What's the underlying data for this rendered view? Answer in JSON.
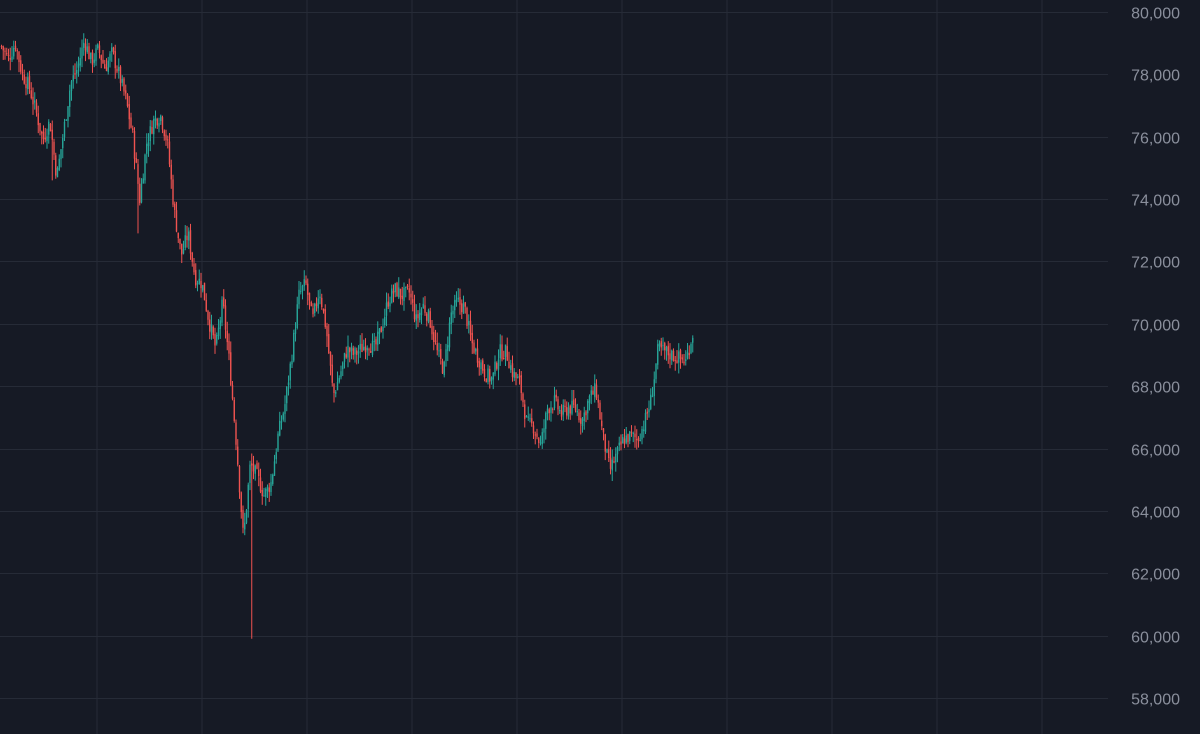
{
  "chart_data": {
    "type": "candlestick",
    "title": "",
    "xlabel": "",
    "ylabel": "",
    "ylim": [
      57000,
      80300
    ],
    "y_ticks": [
      {
        "value": 80000,
        "label": "80,000"
      },
      {
        "value": 78000,
        "label": "78,000"
      },
      {
        "value": 76000,
        "label": "76,000"
      },
      {
        "value": 74000,
        "label": "74,000"
      },
      {
        "value": 72000,
        "label": "72,000"
      },
      {
        "value": 70000,
        "label": "70,000"
      },
      {
        "value": 68000,
        "label": "68,000"
      },
      {
        "value": 66000,
        "label": "66,000"
      },
      {
        "value": 64000,
        "label": "64,000"
      },
      {
        "value": 62000,
        "label": "62,000"
      },
      {
        "value": 60000,
        "label": "60,000"
      },
      {
        "value": 58000,
        "label": "58,000"
      }
    ],
    "y_axis_position": "right",
    "grid": true,
    "total_slots": 396,
    "colors": {
      "background": "#161a25",
      "grid": "#262b37",
      "axis_text": "#8a8f9c",
      "up": "#26a69a",
      "down": "#ef5350"
    },
    "price_path": [
      78900,
      78500,
      79000,
      78000,
      77600,
      76800,
      75900,
      76500,
      74700,
      76200,
      77700,
      78200,
      79100,
      78400,
      78800,
      78200,
      78700,
      78000,
      77200,
      76000,
      74000,
      75800,
      76500,
      76700,
      75800,
      73600,
      72200,
      72900,
      71500,
      71300,
      70100,
      69200,
      70700,
      68700,
      66100,
      63100,
      65500,
      65100,
      64500,
      64900,
      66400,
      67400,
      69000,
      70900,
      71300,
      70100,
      71100,
      69800,
      67700,
      68400,
      69200,
      69000,
      69200,
      69400,
      69200,
      69900,
      70800,
      71100,
      70900,
      71000,
      70100,
      70600,
      70100,
      69100,
      68500,
      70300,
      70700,
      70500,
      69400,
      68900,
      68400,
      68200,
      69100,
      69100,
      68400,
      68100,
      66800,
      66700,
      66100,
      67300,
      67500,
      67100,
      67300,
      67300,
      66900,
      67600,
      67900,
      66400,
      65300,
      65800,
      66300,
      66400,
      66300,
      66800,
      67600,
      69200,
      69100,
      69000,
      68900,
      68800,
      69700
    ]
  }
}
